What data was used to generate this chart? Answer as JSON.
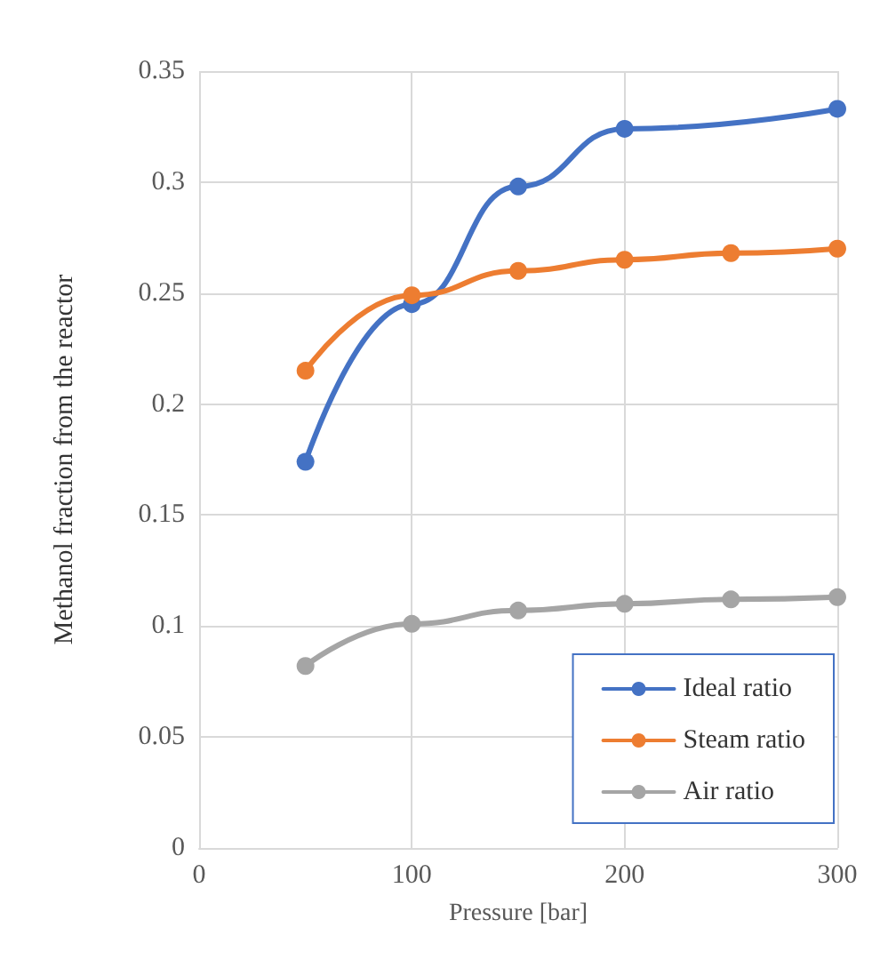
{
  "chart_data": {
    "type": "line",
    "xlabel": "Pressure [bar]",
    "ylabel": "Methanol fraction from the reactor",
    "xlim": [
      0,
      300
    ],
    "xticks": [
      0,
      100,
      200,
      300
    ],
    "ylim": [
      0,
      0.35
    ],
    "yticks": [
      0,
      0.05,
      0.1,
      0.15,
      0.2,
      0.25,
      0.3,
      0.35
    ],
    "grid": true,
    "legend": "bottom right",
    "marker": "circle",
    "line_style": "solid",
    "series": [
      {
        "name": "Ideal ratio",
        "color": "#4472c4",
        "x": [
          50,
          100,
          150,
          200,
          300
        ],
        "values": [
          0.174,
          0.245,
          0.298,
          0.324,
          0.333
        ]
      },
      {
        "name": "Steam ratio",
        "color": "#ed7d31",
        "x": [
          50,
          100,
          150,
          200,
          250,
          300
        ],
        "values": [
          0.215,
          0.249,
          0.26,
          0.265,
          0.268,
          0.27
        ]
      },
      {
        "name": "Air ratio",
        "color": "#a5a5a5",
        "x": [
          50,
          100,
          150,
          200,
          250,
          300
        ],
        "values": [
          0.082,
          0.101,
          0.107,
          0.11,
          0.112,
          0.113
        ]
      }
    ]
  }
}
